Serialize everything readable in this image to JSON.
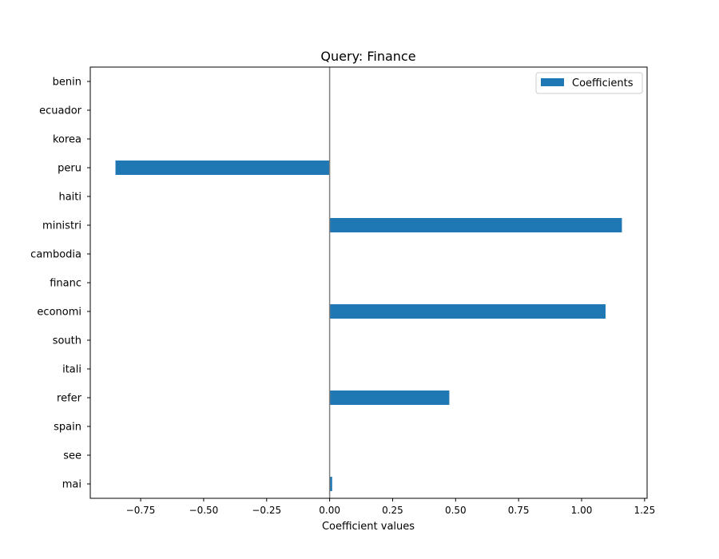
{
  "chart_data": {
    "type": "bar",
    "orientation": "horizontal",
    "title": "Query: Finance",
    "xlabel": "Coefficient values",
    "ylabel": "",
    "categories": [
      "benin",
      "ecuador",
      "korea",
      "peru",
      "haiti",
      "ministri",
      "cambodia",
      "financ",
      "economi",
      "south",
      "itali",
      "refer",
      "spain",
      "see",
      "mai"
    ],
    "series": [
      {
        "name": "Coefficients",
        "values": [
          0.0,
          0.0,
          0.0,
          -0.85,
          0.0,
          1.16,
          0.0,
          0.0,
          1.095,
          0.0,
          0.0,
          0.475,
          0.0,
          0.0,
          0.01
        ]
      }
    ],
    "xlim": [
      -0.95,
      1.26
    ],
    "xticks": [
      -0.75,
      -0.5,
      -0.25,
      0.0,
      0.25,
      0.5,
      0.75,
      1.0,
      1.25
    ],
    "xtick_labels": [
      "−0.75",
      "−0.50",
      "−0.25",
      "0.00",
      "0.25",
      "0.50",
      "0.75",
      "1.00",
      "1.25"
    ],
    "zero_line": true,
    "grid": false,
    "legend_position": "top-right",
    "colors": {
      "bar": "#1f77b4",
      "zero_line": "#808080",
      "axes": "#000000"
    }
  }
}
